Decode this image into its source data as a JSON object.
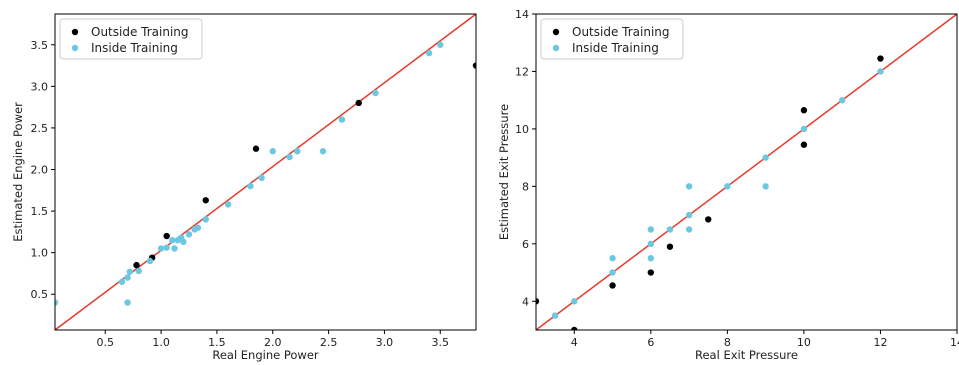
{
  "chart_data": [
    {
      "type": "scatter",
      "xlabel": "Real Engine Power",
      "ylabel": "Estimated Engine Power",
      "xlim": [
        0.05,
        3.82
      ],
      "ylim": [
        0.07,
        3.87
      ],
      "xticks": [
        0.5,
        1.0,
        1.5,
        2.0,
        2.5,
        3.0,
        3.5
      ],
      "xtick_labels": [
        "0.5",
        "1.0",
        "1.5",
        "2.0",
        "2.5",
        "3.0",
        "3.5"
      ],
      "yticks": [
        0.5,
        1.0,
        1.5,
        2.0,
        2.5,
        3.0,
        3.5
      ],
      "ytick_labels": [
        "0.5",
        "1.0",
        "1.5",
        "2.0",
        "2.5",
        "3.0",
        "3.5"
      ],
      "legend_position": "top-left",
      "reference_line": {
        "from": [
          0.05,
          0.07
        ],
        "to": [
          3.82,
          3.87
        ],
        "color": "#e8392b"
      },
      "series": [
        {
          "name": "Outside Training",
          "color": "#000000",
          "points": [
            [
              0.78,
              0.85
            ],
            [
              0.92,
              0.94
            ],
            [
              1.05,
              1.2
            ],
            [
              1.4,
              1.63
            ],
            [
              1.85,
              2.25
            ],
            [
              2.77,
              2.8
            ],
            [
              3.82,
              3.25
            ]
          ]
        },
        {
          "name": "Inside Training",
          "color": "#6cc7e0",
          "points": [
            [
              0.05,
              0.4
            ],
            [
              0.65,
              0.65
            ],
            [
              0.7,
              0.7
            ],
            [
              0.72,
              0.77
            ],
            [
              0.7,
              0.4
            ],
            [
              0.8,
              0.78
            ],
            [
              0.9,
              0.9
            ],
            [
              1.0,
              1.05
            ],
            [
              1.05,
              1.06
            ],
            [
              1.1,
              1.15
            ],
            [
              1.12,
              1.05
            ],
            [
              1.15,
              1.15
            ],
            [
              1.18,
              1.18
            ],
            [
              1.2,
              1.13
            ],
            [
              1.25,
              1.22
            ],
            [
              1.3,
              1.28
            ],
            [
              1.33,
              1.3
            ],
            [
              1.4,
              1.4
            ],
            [
              1.6,
              1.58
            ],
            [
              1.8,
              1.8
            ],
            [
              1.9,
              1.9
            ],
            [
              2.0,
              2.22
            ],
            [
              2.15,
              2.15
            ],
            [
              2.22,
              2.22
            ],
            [
              2.45,
              2.22
            ],
            [
              2.62,
              2.6
            ],
            [
              2.92,
              2.92
            ],
            [
              3.4,
              3.4
            ],
            [
              3.5,
              3.5
            ]
          ]
        }
      ]
    },
    {
      "type": "scatter",
      "xlabel": "Real Exit Pressure",
      "ylabel": "Estimated Exit Pressure",
      "xlim": [
        3.0,
        14.0
      ],
      "ylim": [
        3.0,
        14.0
      ],
      "xticks": [
        4,
        6,
        8,
        10,
        12,
        14
      ],
      "xtick_labels": [
        "4",
        "6",
        "8",
        "10",
        "12",
        "14"
      ],
      "yticks": [
        4,
        6,
        8,
        10,
        12,
        14
      ],
      "ytick_labels": [
        "4",
        "6",
        "8",
        "10",
        "12",
        "14"
      ],
      "legend_position": "top-left",
      "reference_line": {
        "from": [
          3.0,
          3.0
        ],
        "to": [
          14.0,
          14.0
        ],
        "color": "#e8392b"
      },
      "series": [
        {
          "name": "Outside Training",
          "color": "#000000",
          "points": [
            [
              3.0,
              4.0
            ],
            [
              4.0,
              3.0
            ],
            [
              5.0,
              4.55
            ],
            [
              6.0,
              5.0
            ],
            [
              6.5,
              5.9
            ],
            [
              7.5,
              6.85
            ],
            [
              10.0,
              9.45
            ],
            [
              10.0,
              10.65
            ],
            [
              12.0,
              12.45
            ]
          ]
        },
        {
          "name": "Inside Training",
          "color": "#6cc7e0",
          "points": [
            [
              3.5,
              3.5
            ],
            [
              4.0,
              4.0
            ],
            [
              5.0,
              5.0
            ],
            [
              5.0,
              5.5
            ],
            [
              6.0,
              5.5
            ],
            [
              6.0,
              6.0
            ],
            [
              6.0,
              6.5
            ],
            [
              6.5,
              6.5
            ],
            [
              7.0,
              6.5
            ],
            [
              7.0,
              7.0
            ],
            [
              7.0,
              8.0
            ],
            [
              8.0,
              8.0
            ],
            [
              9.0,
              8.0
            ],
            [
              9.0,
              9.0
            ],
            [
              10.0,
              10.0
            ],
            [
              11.0,
              11.0
            ],
            [
              12.0,
              12.0
            ]
          ]
        }
      ]
    }
  ]
}
